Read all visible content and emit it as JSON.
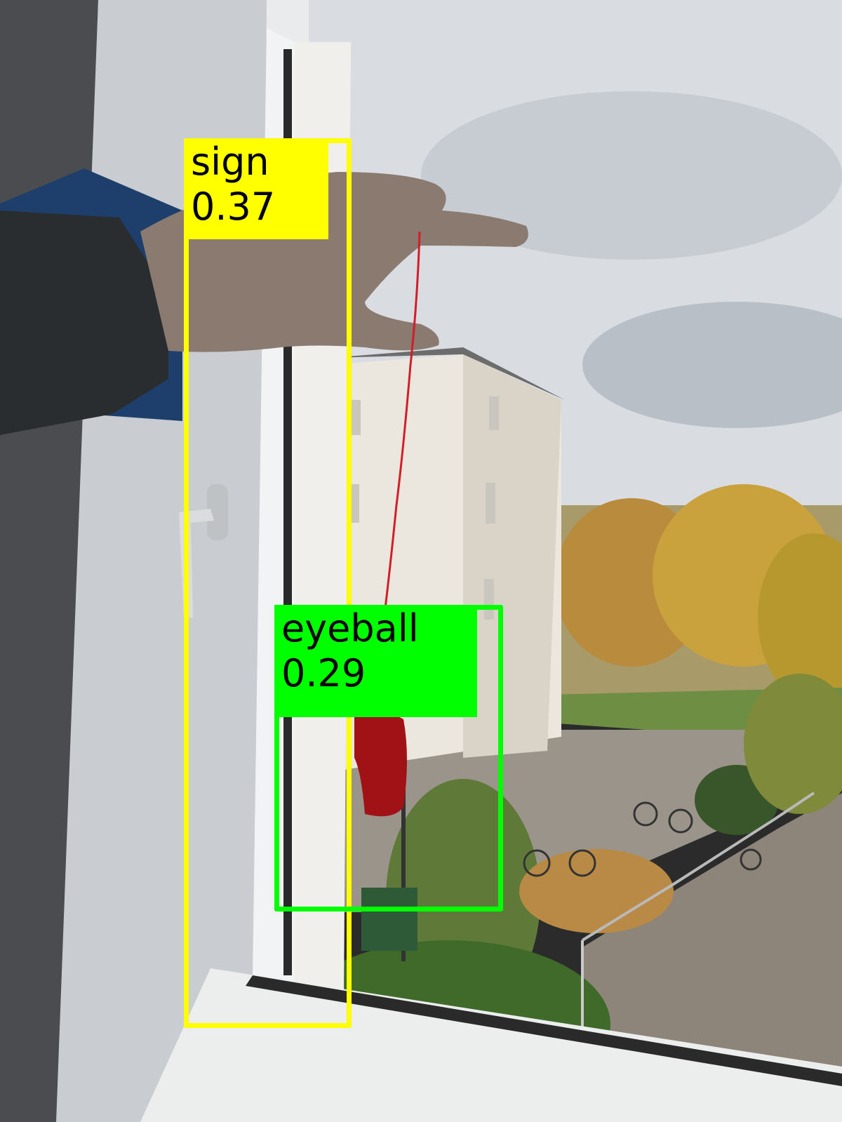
{
  "detections": [
    {
      "label": "sign",
      "score": "0.37",
      "color": "#ffff00"
    },
    {
      "label": "eyeball",
      "score": "0.29",
      "color": "#00ff00"
    }
  ],
  "scene": {
    "description_icons": [
      "window-frame",
      "hand",
      "whistle",
      "building",
      "trees",
      "bicycles",
      "path"
    ]
  }
}
